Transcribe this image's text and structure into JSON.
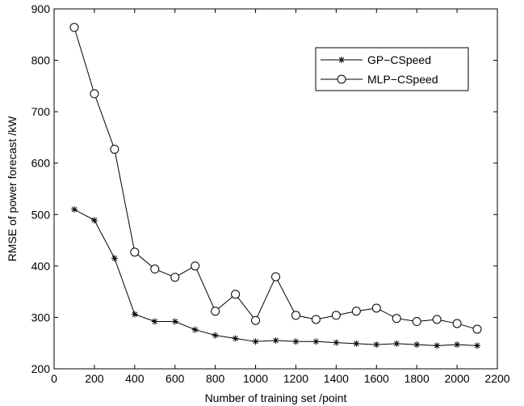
{
  "chart_data": {
    "type": "line",
    "xlabel": "Number of training set /point",
    "ylabel": "RMSE of power forecast /kW",
    "xlim": [
      0,
      2200
    ],
    "ylim": [
      200,
      900
    ],
    "xticks": [
      0,
      200,
      400,
      600,
      800,
      1000,
      1200,
      1400,
      1600,
      1800,
      2000,
      2200
    ],
    "yticks": [
      200,
      300,
      400,
      500,
      600,
      700,
      800,
      900
    ],
    "grid": false,
    "legend_position": "top-right",
    "x": [
      100,
      200,
      300,
      400,
      500,
      600,
      700,
      800,
      900,
      1000,
      1100,
      1200,
      1300,
      1400,
      1500,
      1600,
      1700,
      1800,
      1900,
      2000,
      2100
    ],
    "series": [
      {
        "name": "GP−CSpeed",
        "marker": "asterisk",
        "color": "#000000",
        "values": [
          510,
          489,
          415,
          306,
          292,
          292,
          276,
          265,
          259,
          253,
          255,
          253,
          253,
          251,
          249,
          247,
          249,
          247,
          245,
          247,
          245
        ]
      },
      {
        "name": "MLP−CSpeed",
        "marker": "circle",
        "color": "#000000",
        "values": [
          864,
          735,
          627,
          427,
          394,
          378,
          400,
          312,
          345,
          294,
          379,
          304,
          296,
          304,
          312,
          318,
          298,
          292,
          296,
          288,
          277
        ]
      }
    ]
  }
}
